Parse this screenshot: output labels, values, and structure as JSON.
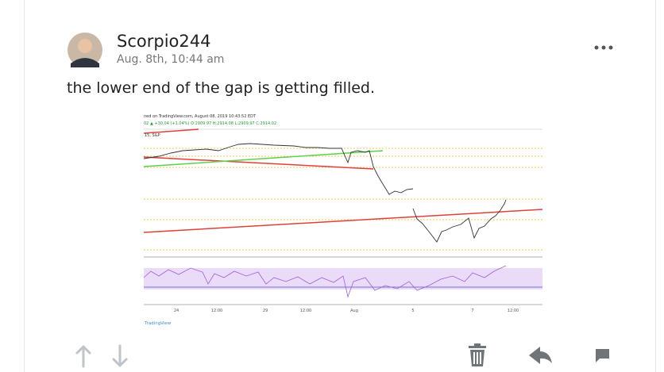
{
  "post": {
    "author": "Scorpio244",
    "timestamp": "Aug. 8th, 10:44 am",
    "text": "the lower end of the gap is getting filled."
  },
  "attachment": {
    "header": "ned on TradingView.com, August 08, 2019 10:43:52 EDT",
    "quote": "02 ▲ +30.04 (+1.04%) O:2909.97 H:2914.08 L:2909.97 C:2914.02",
    "symbol": "15, S&P",
    "x_labels": [
      "24",
      "12:00",
      "29",
      "12:00",
      "Aug",
      "5",
      "7",
      "12:00"
    ],
    "watermark": "TradingView"
  }
}
